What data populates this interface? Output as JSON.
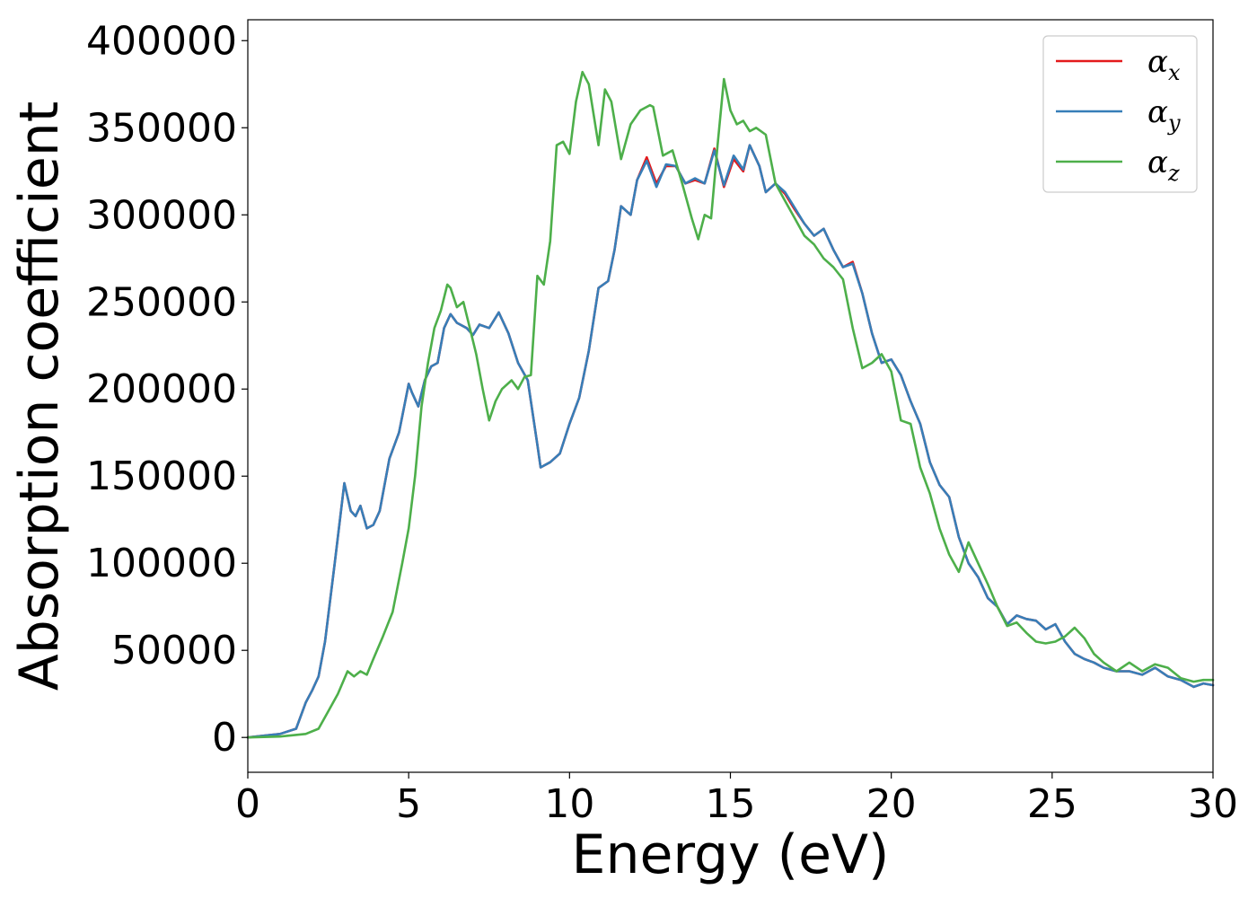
{
  "chart_data": {
    "type": "line",
    "title": "",
    "xlabel": "Energy (eV)",
    "ylabel": "Absorption coefficient",
    "xlim": [
      0,
      30
    ],
    "ylim": [
      -20000,
      412000
    ],
    "xticks": [
      0,
      5,
      10,
      15,
      20,
      25,
      30
    ],
    "yticks": [
      0,
      50000,
      100000,
      150000,
      200000,
      250000,
      300000,
      350000,
      400000
    ],
    "grid": false,
    "legend_position": "top-right",
    "series": [
      {
        "name": "α_x",
        "symbol": "α",
        "subscript": "x",
        "color": "#e41a1c",
        "x": [
          0,
          1.0,
          1.5,
          1.8,
          2.0,
          2.2,
          2.4,
          2.7,
          3.0,
          3.2,
          3.35,
          3.5,
          3.7,
          3.9,
          4.1,
          4.4,
          4.7,
          5.0,
          5.1,
          5.3,
          5.5,
          5.7,
          5.9,
          6.1,
          6.3,
          6.5,
          6.8,
          7.0,
          7.2,
          7.5,
          7.8,
          8.1,
          8.4,
          8.7,
          9.0,
          9.1,
          9.4,
          9.7,
          10.0,
          10.3,
          10.6,
          10.9,
          11.2,
          11.4,
          11.6,
          11.9,
          12.1,
          12.4,
          12.7,
          13.0,
          13.3,
          13.6,
          13.9,
          14.2,
          14.5,
          14.8,
          15.1,
          15.4,
          15.6,
          15.9,
          16.1,
          16.4,
          16.7,
          17.0,
          17.3,
          17.6,
          17.9,
          18.2,
          18.5,
          18.8,
          19.1,
          19.4,
          19.7,
          20.0,
          20.3,
          20.6,
          20.9,
          21.2,
          21.5,
          21.8,
          22.1,
          22.4,
          22.7,
          23.0,
          23.3,
          23.6,
          23.9,
          24.2,
          24.5,
          24.8,
          25.1,
          25.4,
          25.7,
          26.0,
          26.3,
          26.6,
          27.0,
          27.4,
          27.8,
          28.2,
          28.6,
          29.0,
          29.4,
          29.7,
          30.0
        ],
        "y": [
          0,
          2000,
          5000,
          20000,
          27000,
          35000,
          55000,
          100000,
          146000,
          130000,
          127000,
          133000,
          120000,
          122000,
          130000,
          160000,
          175000,
          203000,
          198000,
          190000,
          205000,
          213000,
          215000,
          235000,
          243000,
          238000,
          235000,
          231000,
          237000,
          235000,
          244000,
          232000,
          215000,
          205000,
          168000,
          155000,
          158000,
          163000,
          180000,
          195000,
          222000,
          258000,
          262000,
          280000,
          305000,
          300000,
          320000,
          333000,
          318000,
          328000,
          328000,
          318000,
          320000,
          318000,
          338000,
          316000,
          332000,
          325000,
          340000,
          328000,
          313000,
          318000,
          312000,
          303000,
          295000,
          288000,
          292000,
          280000,
          270000,
          273000,
          255000,
          232000,
          215000,
          217000,
          208000,
          193000,
          180000,
          158000,
          145000,
          138000,
          115000,
          100000,
          92000,
          80000,
          75000,
          65000,
          70000,
          68000,
          67000,
          62000,
          65000,
          55000,
          48000,
          45000,
          43000,
          40000,
          38000,
          38000,
          36000,
          40000,
          35000,
          33000,
          29000,
          31000,
          30000
        ]
      },
      {
        "name": "α_y",
        "symbol": "α",
        "subscript": "y",
        "color": "#377eb8",
        "x": [
          0,
          1.0,
          1.5,
          1.8,
          2.0,
          2.2,
          2.4,
          2.7,
          3.0,
          3.2,
          3.35,
          3.5,
          3.7,
          3.9,
          4.1,
          4.4,
          4.7,
          5.0,
          5.1,
          5.3,
          5.5,
          5.7,
          5.9,
          6.1,
          6.3,
          6.5,
          6.8,
          7.0,
          7.2,
          7.5,
          7.8,
          8.1,
          8.4,
          8.7,
          9.0,
          9.1,
          9.4,
          9.7,
          10.0,
          10.3,
          10.6,
          10.9,
          11.2,
          11.4,
          11.6,
          11.9,
          12.1,
          12.4,
          12.7,
          13.0,
          13.3,
          13.6,
          13.9,
          14.2,
          14.5,
          14.8,
          15.1,
          15.4,
          15.6,
          15.9,
          16.1,
          16.4,
          16.7,
          17.0,
          17.3,
          17.6,
          17.9,
          18.2,
          18.5,
          18.8,
          19.1,
          19.4,
          19.7,
          20.0,
          20.3,
          20.6,
          20.9,
          21.2,
          21.5,
          21.8,
          22.1,
          22.4,
          22.7,
          23.0,
          23.3,
          23.6,
          23.9,
          24.2,
          24.5,
          24.8,
          25.1,
          25.4,
          25.7,
          26.0,
          26.3,
          26.6,
          27.0,
          27.4,
          27.8,
          28.2,
          28.6,
          29.0,
          29.4,
          29.7,
          30.0
        ],
        "y": [
          0,
          2000,
          5000,
          20000,
          27000,
          35000,
          55000,
          100000,
          146000,
          130000,
          127000,
          133000,
          120000,
          122000,
          130000,
          160000,
          175000,
          203000,
          198000,
          190000,
          205000,
          213000,
          215000,
          235000,
          243000,
          238000,
          235000,
          231000,
          237000,
          235000,
          244000,
          232000,
          215000,
          205000,
          168000,
          155000,
          158000,
          163000,
          180000,
          195000,
          222000,
          258000,
          262000,
          280000,
          305000,
          300000,
          320000,
          331000,
          316000,
          329000,
          328000,
          318000,
          321000,
          318000,
          337000,
          317000,
          334000,
          326000,
          340000,
          328000,
          313000,
          318000,
          313000,
          304000,
          295000,
          288000,
          292000,
          280000,
          270000,
          272000,
          255000,
          232000,
          215000,
          217000,
          208000,
          193000,
          180000,
          158000,
          145000,
          138000,
          115000,
          100000,
          92000,
          80000,
          75000,
          65000,
          70000,
          68000,
          67000,
          62000,
          65000,
          55000,
          48000,
          45000,
          43000,
          40000,
          38000,
          38000,
          36000,
          40000,
          35000,
          33000,
          29000,
          31000,
          30000
        ]
      },
      {
        "name": "α_z",
        "symbol": "α",
        "subscript": "z",
        "color": "#4daf4a",
        "x": [
          0,
          1.0,
          1.8,
          2.2,
          2.5,
          2.8,
          3.1,
          3.3,
          3.5,
          3.7,
          3.9,
          4.2,
          4.5,
          4.8,
          5.0,
          5.2,
          5.4,
          5.6,
          5.8,
          6.0,
          6.2,
          6.3,
          6.5,
          6.7,
          6.9,
          7.1,
          7.3,
          7.5,
          7.7,
          7.9,
          8.2,
          8.4,
          8.6,
          8.8,
          9.0,
          9.2,
          9.4,
          9.6,
          9.8,
          10.0,
          10.2,
          10.4,
          10.6,
          10.9,
          11.1,
          11.3,
          11.6,
          11.9,
          12.2,
          12.5,
          12.6,
          12.9,
          13.2,
          13.5,
          13.8,
          14.0,
          14.2,
          14.4,
          14.6,
          14.8,
          15.0,
          15.2,
          15.4,
          15.6,
          15.8,
          16.1,
          16.4,
          16.7,
          17.0,
          17.3,
          17.6,
          17.9,
          18.2,
          18.5,
          18.8,
          19.1,
          19.4,
          19.7,
          20.0,
          20.3,
          20.6,
          20.9,
          21.2,
          21.5,
          21.8,
          22.1,
          22.4,
          22.7,
          23.0,
          23.3,
          23.6,
          23.9,
          24.2,
          24.5,
          24.8,
          25.1,
          25.4,
          25.7,
          26.0,
          26.3,
          26.6,
          27.0,
          27.4,
          27.8,
          28.2,
          28.6,
          29.0,
          29.4,
          29.7,
          30.0
        ],
        "y": [
          0,
          500,
          2000,
          5000,
          15000,
          25000,
          38000,
          35000,
          38000,
          36000,
          45000,
          58000,
          72000,
          100000,
          120000,
          150000,
          190000,
          215000,
          235000,
          245000,
          260000,
          258000,
          247000,
          250000,
          235000,
          220000,
          200000,
          182000,
          193000,
          200000,
          205000,
          200000,
          207000,
          208000,
          265000,
          260000,
          285000,
          340000,
          342000,
          335000,
          365000,
          382000,
          375000,
          340000,
          372000,
          365000,
          332000,
          352000,
          360000,
          363000,
          362000,
          334000,
          337000,
          318000,
          298000,
          286000,
          300000,
          298000,
          340000,
          378000,
          360000,
          352000,
          354000,
          348000,
          350000,
          346000,
          318000,
          308000,
          298000,
          288000,
          283000,
          275000,
          270000,
          263000,
          235000,
          212000,
          215000,
          220000,
          210000,
          182000,
          180000,
          155000,
          140000,
          120000,
          105000,
          95000,
          112000,
          100000,
          88000,
          75000,
          64000,
          66000,
          60000,
          55000,
          54000,
          55000,
          58000,
          63000,
          57000,
          48000,
          43000,
          38000,
          43000,
          38000,
          42000,
          40000,
          34000,
          32000,
          33000,
          33000
        ]
      }
    ]
  }
}
